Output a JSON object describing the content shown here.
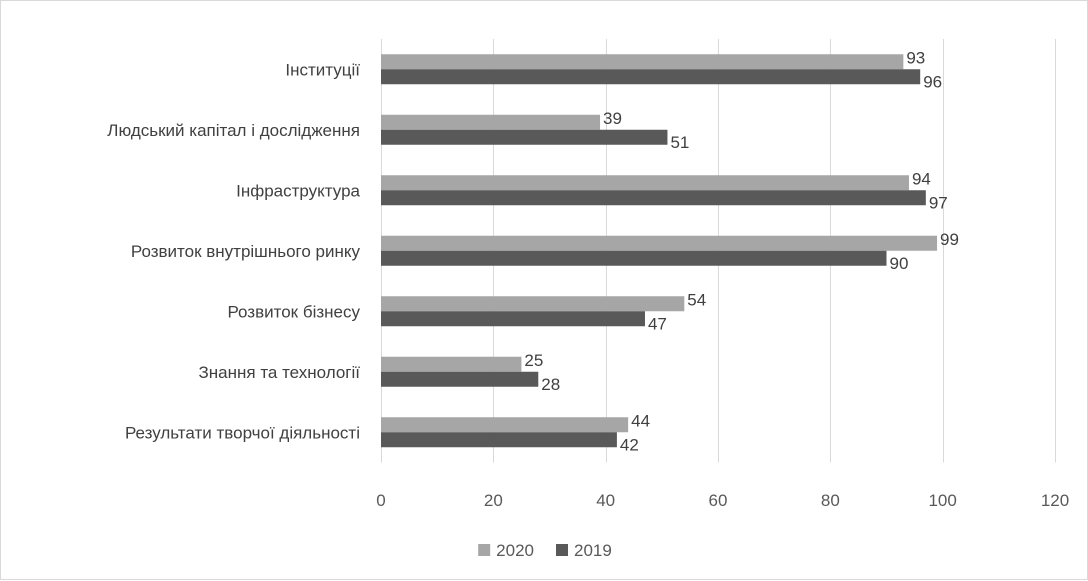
{
  "chart_data": {
    "type": "bar",
    "orientation": "horizontal",
    "title": "",
    "xlabel": "",
    "ylabel": "",
    "categories": [
      "Інституції",
      "Людський капітал і дослідження",
      "Інфраструктура",
      "Розвиток внутрішнього ринку",
      "Розвиток бізнесу",
      "Знання та технології",
      "Результати творчої діяльності"
    ],
    "series": [
      {
        "name": "2020",
        "color": "#a6a6a6",
        "values": [
          93,
          39,
          94,
          99,
          54,
          25,
          44
        ]
      },
      {
        "name": "2019",
        "color": "#595959",
        "values": [
          96,
          51,
          97,
          90,
          47,
          28,
          42
        ]
      }
    ],
    "xlim": [
      0,
      120
    ],
    "xticks": [
      0,
      20,
      40,
      60,
      80,
      100,
      120
    ],
    "grid": true,
    "legend": "bottom",
    "data_labels": true
  }
}
